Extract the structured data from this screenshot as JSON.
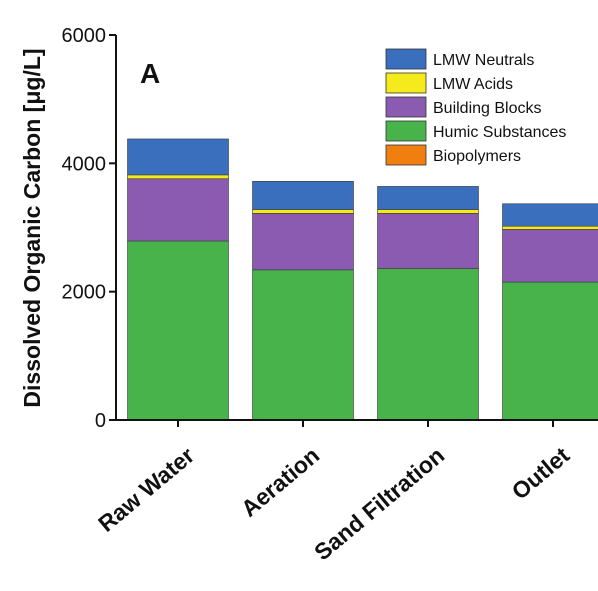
{
  "chart_data": {
    "type": "bar",
    "stacked": true,
    "panel_label": "A",
    "ylabel": "Dissolved Organic Carbon [μg/L]",
    "xlabel": "",
    "ylim": [
      0,
      6000
    ],
    "yticks": [
      0,
      2000,
      4000,
      6000
    ],
    "categories": [
      "Raw Water",
      "Aeration",
      "Sand Filtration",
      "Outlet"
    ],
    "series": [
      {
        "name": "Biopolymers",
        "color": "#f07f10",
        "values": [
          10,
          10,
          10,
          10
        ]
      },
      {
        "name": "Humic Substances",
        "color": "#47b34a",
        "values": [
          2780,
          2330,
          2350,
          2140
        ]
      },
      {
        "name": "Building Blocks",
        "color": "#8a5bb0",
        "values": [
          970,
          880,
          860,
          820
        ]
      },
      {
        "name": "LMW Acids",
        "color": "#f4ea1c",
        "values": [
          60,
          60,
          60,
          50
        ]
      },
      {
        "name": "LMW Neutrals",
        "color": "#3a6fbe",
        "values": [
          560,
          440,
          360,
          350
        ]
      }
    ],
    "legend_order": [
      "LMW Neutrals",
      "LMW Acids",
      "Building Blocks",
      "Humic Substances",
      "Biopolymers"
    ],
    "legend_position": "top-right",
    "grid": false
  }
}
